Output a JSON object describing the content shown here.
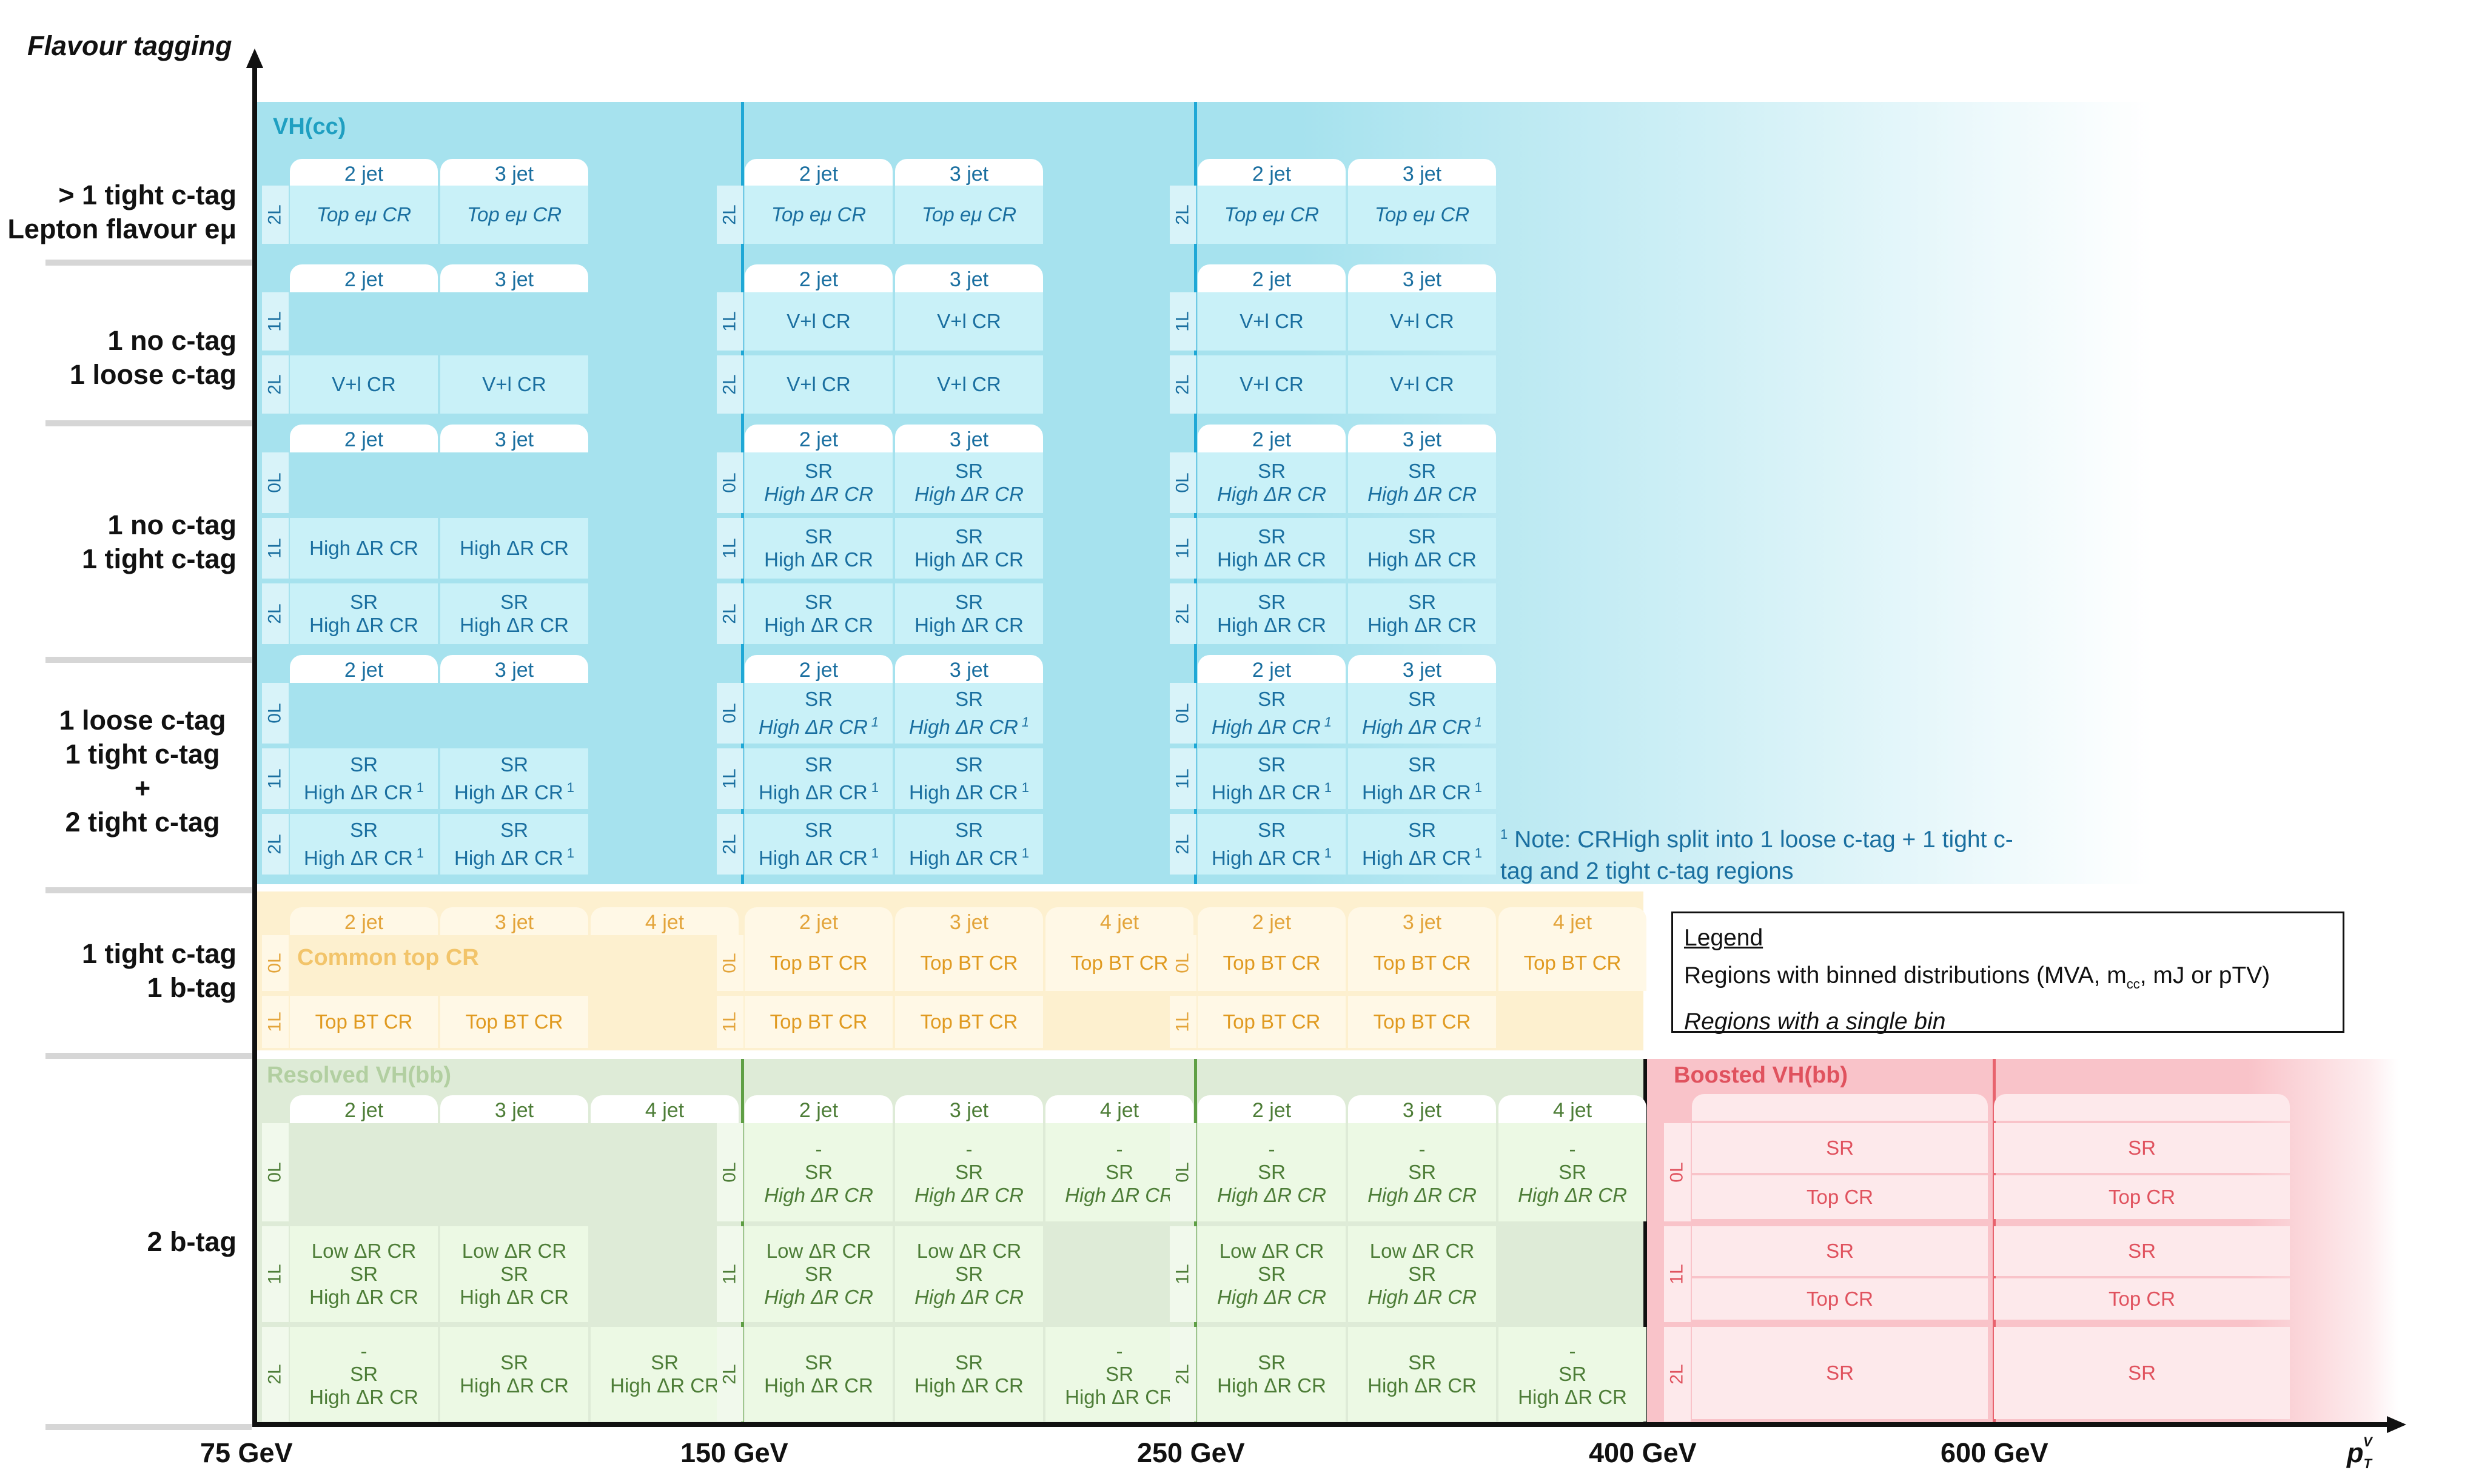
{
  "axes": {
    "y_title": "Flavour tagging",
    "x_title": "p",
    "x_title_sub": "T",
    "x_title_sup": "V",
    "x_ticks": [
      "75 GeV",
      "150 GeV",
      "250 GeV",
      "400 GeV",
      "600 GeV"
    ]
  },
  "rows": {
    "r1_a": "> 1 tight c-tag",
    "r1_b": "Lepton flavour eμ",
    "r2_a": "1 no c-tag",
    "r2_b": "1 loose c-tag",
    "r3_a": "1 no c-tag",
    "r3_b": "1 tight c-tag",
    "r4_a": "1 loose c-tag",
    "r4_b": "1 tight c-tag",
    "r4_c": "+",
    "r4_d": "2 tight c-tag",
    "r5_a": "1 tight c-tag",
    "r5_b": "1 b-tag",
    "r6_a": "2 b-tag"
  },
  "regions": {
    "vhcc": "VH(cc)",
    "common_top": "Common top CR",
    "resolved_vhbb": "Resolved VH(bb)",
    "boosted_vhbb": "Boosted VH(bb)"
  },
  "jets": {
    "j2": "2 jet",
    "j3": "3 jet",
    "j4": "4 jet"
  },
  "leptons": {
    "l0": "0L",
    "l1": "1L",
    "l2": "2L"
  },
  "cells": {
    "top_emu": "Top eμ CR",
    "vl": "V+l CR",
    "sr": "SR",
    "high_dr": "High ΔR CR",
    "low_dr": "Low ΔR CR",
    "top_bt": "Top BT CR",
    "top_cr": "Top CR",
    "dash": "-",
    "fn": "1"
  },
  "note": {
    "line1": "Note: CRHigh split into 1 loose c-tag + 1 tight c-",
    "line2": "tag and 2 tight c-tag regions",
    "mark": "1"
  },
  "legend": {
    "title": "Legend",
    "line1_a": "Regions with binned distributions (MVA, m",
    "line1_sub": "cc",
    "line1_b": ", mJ or pTV)",
    "line2": "Regions with a single bin"
  },
  "colors": {
    "vhcc_bg": "#a6e2ee",
    "vhcc_cell": "#c9f1f8",
    "vhcc_text": "#1a6fa0",
    "top_bg": "#fdf0cf",
    "top_text": "#e3a43a",
    "bb_bg": "#deebd7",
    "bb_cell": "#ecf9e4",
    "bb_text": "#4d7d37",
    "boost_bg": "#f9c3c9",
    "boost_text": "#e0525e"
  }
}
